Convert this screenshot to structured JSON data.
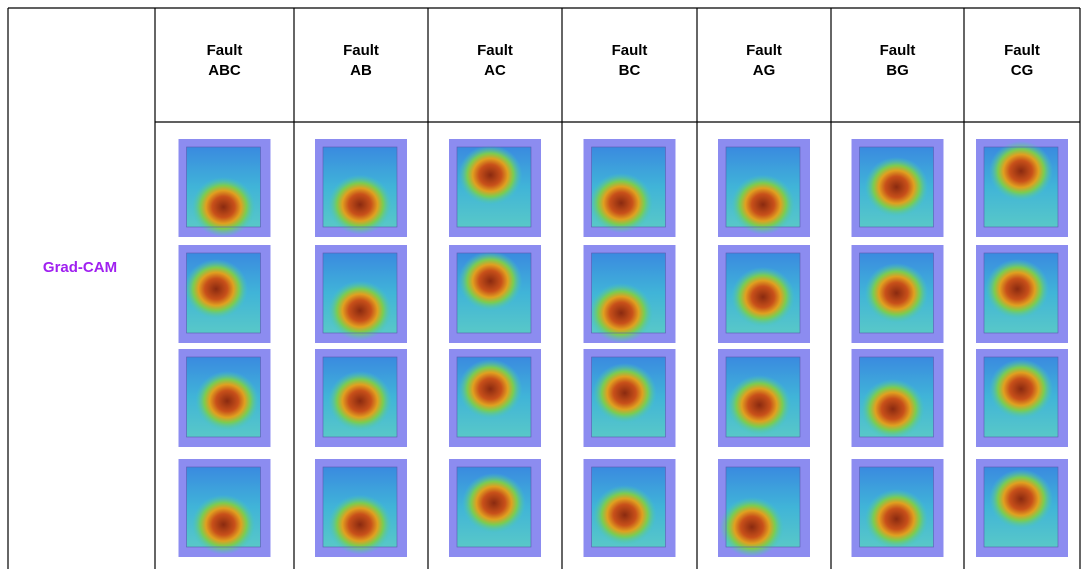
{
  "table": {
    "row_label": "Grad-CAM",
    "columns": [
      [
        "Fault",
        "ABC"
      ],
      [
        "Fault",
        "AB"
      ],
      [
        "Fault",
        "AC"
      ],
      [
        "Fault",
        "BC"
      ],
      [
        "Fault",
        "AG"
      ],
      [
        "Fault",
        "BG"
      ],
      [
        "Fault",
        "CG"
      ]
    ]
  }
}
